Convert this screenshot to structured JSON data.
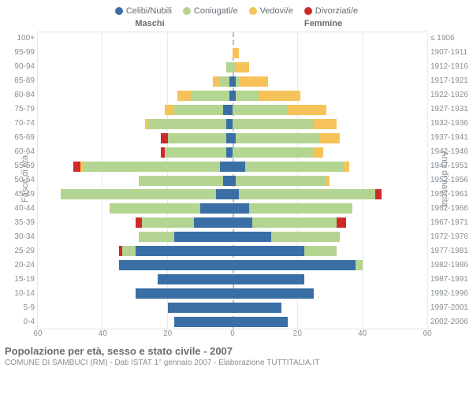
{
  "legend": [
    {
      "label": "Celibi/Nubili",
      "color": "#3a6fa5"
    },
    {
      "label": "Coniugati/e",
      "color": "#b4d491"
    },
    {
      "label": "Vedovi/e",
      "color": "#f6c35a"
    },
    {
      "label": "Divorziati/e",
      "color": "#cf2a2a"
    }
  ],
  "columns": {
    "left": "Maschi",
    "right": "Femmine"
  },
  "axis": {
    "left": "Fasce di età",
    "right": "Anni di nascita",
    "xmax": 60,
    "xticks": [
      60,
      40,
      20,
      0,
      20,
      40,
      60
    ]
  },
  "footer": {
    "title": "Popolazione per età, sesso e stato civile - 2007",
    "sub": "COMUNE DI SAMBUCI (RM) - Dati ISTAT 1° gennaio 2007 - Elaborazione TUTTITALIA.IT"
  },
  "colors": {
    "celibi": "#3a6fa5",
    "coniugati": "#b4d491",
    "vedovi": "#f6c35a",
    "divorziati": "#cf2a2a",
    "grid": "#e6e8ea"
  },
  "rows": [
    {
      "age": "100+",
      "birth": "≤ 1906",
      "m": [
        0,
        0,
        0,
        0
      ],
      "f": [
        0,
        0,
        0,
        0
      ]
    },
    {
      "age": "95-99",
      "birth": "1907-1911",
      "m": [
        0,
        0,
        0,
        0
      ],
      "f": [
        0,
        0,
        2,
        0
      ]
    },
    {
      "age": "90-94",
      "birth": "1912-1916",
      "m": [
        0,
        2,
        0,
        0
      ],
      "f": [
        0,
        1,
        4,
        0
      ]
    },
    {
      "age": "85-89",
      "birth": "1917-1921",
      "m": [
        1,
        3,
        2,
        0
      ],
      "f": [
        1,
        1,
        9,
        0
      ]
    },
    {
      "age": "80-84",
      "birth": "1922-1926",
      "m": [
        1,
        12,
        4,
        0
      ],
      "f": [
        1,
        7,
        13,
        0
      ]
    },
    {
      "age": "75-79",
      "birth": "1927-1931",
      "m": [
        3,
        15,
        3,
        0
      ],
      "f": [
        0,
        17,
        12,
        0
      ]
    },
    {
      "age": "70-74",
      "birth": "1932-1936",
      "m": [
        2,
        24,
        1,
        0
      ],
      "f": [
        0,
        25,
        7,
        0
      ]
    },
    {
      "age": "65-69",
      "birth": "1937-1941",
      "m": [
        2,
        18,
        0,
        2
      ],
      "f": [
        1,
        26,
        6,
        0
      ]
    },
    {
      "age": "60-64",
      "birth": "1942-1946",
      "m": [
        2,
        19,
        0,
        1
      ],
      "f": [
        0,
        25,
        3,
        0
      ]
    },
    {
      "age": "55-59",
      "birth": "1947-1951",
      "m": [
        4,
        42,
        1,
        2
      ],
      "f": [
        4,
        30,
        2,
        0
      ]
    },
    {
      "age": "50-54",
      "birth": "1952-1956",
      "m": [
        3,
        26,
        0,
        0
      ],
      "f": [
        1,
        28,
        1,
        0
      ]
    },
    {
      "age": "45-49",
      "birth": "1957-1961",
      "m": [
        5,
        48,
        0,
        0
      ],
      "f": [
        2,
        42,
        0,
        2
      ]
    },
    {
      "age": "40-44",
      "birth": "1962-1966",
      "m": [
        10,
        28,
        0,
        0
      ],
      "f": [
        5,
        32,
        0,
        0
      ]
    },
    {
      "age": "35-39",
      "birth": "1967-1971",
      "m": [
        12,
        16,
        0,
        2
      ],
      "f": [
        6,
        26,
        0,
        3
      ]
    },
    {
      "age": "30-34",
      "birth": "1972-1976",
      "m": [
        18,
        11,
        0,
        0
      ],
      "f": [
        12,
        21,
        0,
        0
      ]
    },
    {
      "age": "25-29",
      "birth": "1977-1981",
      "m": [
        30,
        4,
        0,
        1
      ],
      "f": [
        22,
        10,
        0,
        0
      ]
    },
    {
      "age": "20-24",
      "birth": "1982-1986",
      "m": [
        35,
        0,
        0,
        0
      ],
      "f": [
        38,
        2,
        0,
        0
      ]
    },
    {
      "age": "15-19",
      "birth": "1987-1991",
      "m": [
        23,
        0,
        0,
        0
      ],
      "f": [
        22,
        0,
        0,
        0
      ]
    },
    {
      "age": "10-14",
      "birth": "1992-1996",
      "m": [
        30,
        0,
        0,
        0
      ],
      "f": [
        25,
        0,
        0,
        0
      ]
    },
    {
      "age": "5-9",
      "birth": "1997-2001",
      "m": [
        20,
        0,
        0,
        0
      ],
      "f": [
        15,
        0,
        0,
        0
      ]
    },
    {
      "age": "0-4",
      "birth": "2002-2006",
      "m": [
        18,
        0,
        0,
        0
      ],
      "f": [
        17,
        0,
        0,
        0
      ]
    }
  ]
}
